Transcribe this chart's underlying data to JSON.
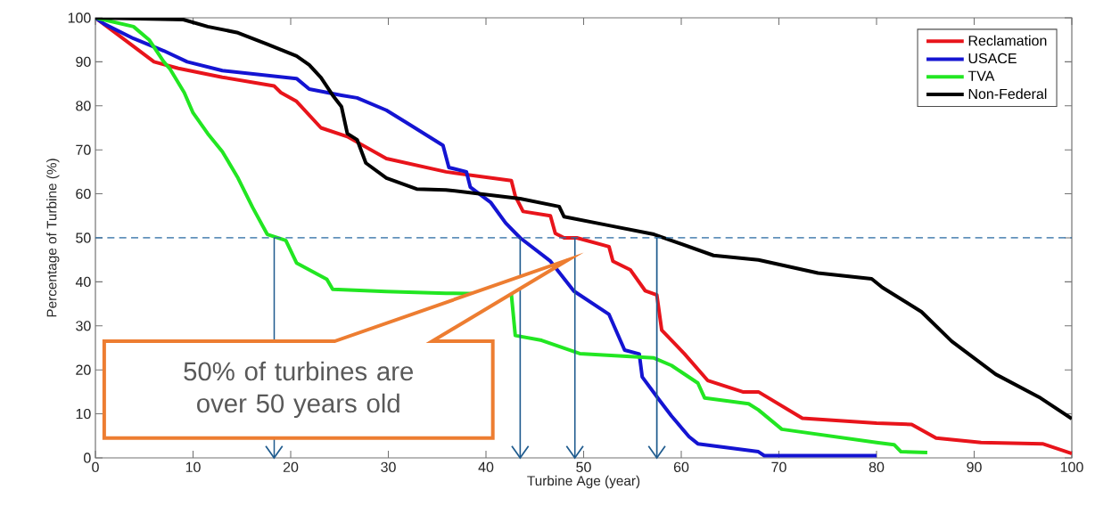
{
  "chart_data": {
    "type": "line",
    "xlabel": "Turbine Age (year)",
    "ylabel": "Percentage of Turbine (%)",
    "xlim": [
      0,
      100
    ],
    "ylim": [
      0,
      100
    ],
    "xticks": [
      0,
      10,
      20,
      30,
      40,
      50,
      60,
      70,
      80,
      90,
      100
    ],
    "yticks": [
      0,
      10,
      20,
      30,
      40,
      50,
      60,
      70,
      80,
      90,
      100
    ],
    "grid": false,
    "legend": "top right",
    "series": [
      {
        "name": "Reclamation",
        "color": "#e8141b",
        "x": [
          0,
          1.2,
          3.3,
          6,
          8.5,
          13,
          18.3,
          19,
          20.6,
          23.1,
          25.8,
          29.8,
          35.9,
          42.6,
          43,
          43.8,
          46.6,
          47.1,
          48,
          49.3,
          52.6,
          53,
          54.8,
          56.3,
          57.5,
          58,
          60.3,
          62.7,
          66.3,
          67.9,
          72.4,
          80,
          83.6,
          86.1,
          90.7,
          97,
          100
        ],
        "values": [
          100,
          98,
          94.5,
          90,
          88.5,
          86.5,
          84.5,
          83,
          81,
          75,
          73,
          68,
          65,
          63,
          59.5,
          56,
          55,
          51,
          50,
          50,
          48,
          44.7,
          42.7,
          38,
          37,
          29,
          23.7,
          17.6,
          15,
          15,
          9,
          7.9,
          7.6,
          4.5,
          3.5,
          3.2,
          1
        ]
      },
      {
        "name": "USACE",
        "color": "#1414d2",
        "x": [
          0,
          0.9,
          3.9,
          7,
          9.4,
          13,
          20.6,
          21.9,
          25.2,
          26.8,
          29.8,
          32.2,
          35.6,
          36.2,
          38,
          38.4,
          40.5,
          42,
          43.5,
          46.6,
          49,
          52.6,
          54.2,
          55.7,
          56,
          57.8,
          59,
          60.8,
          61.7,
          67.9,
          68.5,
          80
        ],
        "values": [
          100,
          98.6,
          95.3,
          92.5,
          90,
          88,
          86.2,
          83.8,
          82.4,
          81.8,
          79,
          75.7,
          71,
          66,
          65,
          61.5,
          58,
          53.4,
          50,
          44.7,
          37.9,
          32.6,
          24.5,
          23.6,
          18.4,
          13,
          9.5,
          4.8,
          3.2,
          1.4,
          0.5,
          0.5
        ]
      },
      {
        "name": "TVA",
        "color": "#22e622",
        "x": [
          0,
          1.2,
          3.9,
          5.5,
          7,
          7.6,
          9.1,
          10,
          11.5,
          13,
          14.6,
          16.1,
          17.6,
          19.5,
          20.6,
          23.7,
          24.3,
          29.8,
          35.9,
          42.6,
          43,
          45.7,
          49.6,
          57.2,
          59,
          61.7,
          62.4,
          66.9,
          67.9,
          70.3,
          80,
          81.8,
          82.5,
          85.2
        ],
        "values": [
          100,
          99.4,
          98,
          95,
          90,
          88.5,
          83,
          78.4,
          73.7,
          69.6,
          63.6,
          56.9,
          50.8,
          49.4,
          44.3,
          40.6,
          38.3,
          37.8,
          37.4,
          37.2,
          27.8,
          26.7,
          23.7,
          22.7,
          21,
          17,
          13.6,
          12.3,
          10.9,
          6.5,
          3.5,
          3,
          1.4,
          1.2
        ]
      },
      {
        "name": "Non-Federal",
        "color": "#000000",
        "x": [
          0,
          9,
          11.5,
          14.6,
          17.6,
          20.6,
          21.9,
          23.1,
          24.3,
          25.2,
          25.8,
          26.8,
          27.7,
          29.8,
          32.9,
          35.9,
          43.5,
          47.5,
          48,
          52.6,
          57.2,
          63.3,
          67.9,
          74,
          79.5,
          80.6,
          84.6,
          87.7,
          92.2,
          96.8,
          100
        ],
        "values": [
          100,
          99.6,
          98,
          96.6,
          94,
          91.3,
          89.3,
          86.4,
          82.4,
          79.8,
          73.7,
          72.3,
          67,
          63.6,
          61.1,
          60.9,
          58.9,
          57.1,
          54.8,
          52.8,
          50.8,
          46,
          45,
          42,
          40.7,
          38.7,
          33.2,
          26.5,
          19,
          13.6,
          8.9
        ]
      }
    ],
    "ref_lines": [
      {
        "axis": "y",
        "value": 50,
        "color": "#2e6da4",
        "line_style": "dashed"
      },
      {
        "axis": "x",
        "value": 18.3,
        "color": "#1f5b8e"
      },
      {
        "axis": "x",
        "value": 43.5,
        "color": "#1f5b8e"
      },
      {
        "axis": "x",
        "value": 49.1,
        "color": "#1f5b8e"
      },
      {
        "axis": "x",
        "value": 57.5,
        "color": "#1f5b8e"
      }
    ],
    "annotations": [
      "50% of turbines are over 50 years old"
    ]
  }
}
